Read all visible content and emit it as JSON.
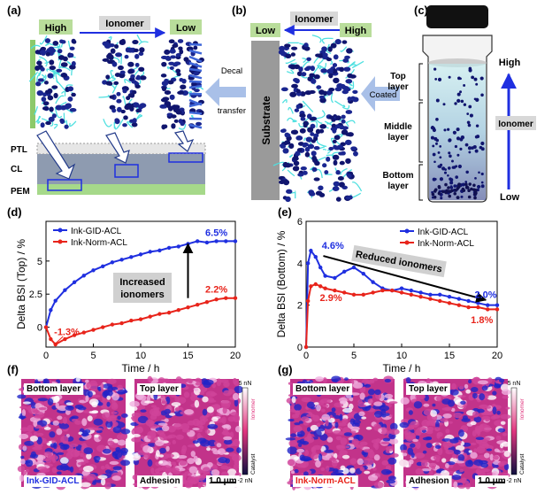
{
  "panel_labels": {
    "a": "(a)",
    "b": "(b)",
    "c": "(c)",
    "d": "(d)",
    "e": "(e)",
    "f": "(f)",
    "g": "(g)"
  },
  "panel_a": {
    "high": "High",
    "ionomer": "Ionomer",
    "low": "Low",
    "layers": [
      "PTL",
      "CL",
      "PEM"
    ],
    "decal": [
      "Decal",
      "transfer"
    ]
  },
  "panel_b": {
    "low": "Low",
    "ionomer": "Ionomer",
    "high": "High",
    "substrate": "Substrate",
    "coated": "Coated"
  },
  "panel_c": {
    "top_layer": [
      "Top",
      "layer"
    ],
    "middle_layer": [
      "Middle",
      "layer"
    ],
    "bottom_layer": [
      "Bottom",
      "layer"
    ],
    "high": "High",
    "ionomer": "Ionomer",
    "low": "Low"
  },
  "colors": {
    "blue": "#1f2fe0",
    "red": "#e8241b",
    "green_label": "#b9dd9b",
    "arrow_blue": "#a9c0e8",
    "navy": "#10156e",
    "cyan": "#4fe0e0"
  },
  "chart_data": [
    {
      "type": "line",
      "ylabel": "Delta BSI (Top) / %",
      "xlabel": "Time / h",
      "xlim": [
        0,
        20
      ],
      "ylim": [
        -1.5,
        8
      ],
      "xticks": [
        0,
        5,
        10,
        15,
        20
      ],
      "yticks": [
        0,
        2.5,
        5
      ],
      "series": [
        {
          "name": "Ink-GID-ACL",
          "color": "#1f2fe0",
          "x": [
            0,
            0.5,
            1,
            2,
            3,
            4,
            5,
            6,
            7,
            8,
            9,
            10,
            11,
            12,
            13,
            14,
            15,
            16,
            17,
            18,
            19,
            20
          ],
          "y": [
            0,
            1.3,
            2.0,
            2.8,
            3.4,
            3.9,
            4.3,
            4.6,
            4.9,
            5.1,
            5.3,
            5.5,
            5.7,
            5.8,
            6.0,
            6.1,
            6.3,
            6.5,
            6.4,
            6.5,
            6.5,
            6.5
          ]
        },
        {
          "name": "Ink-Norm-ACL",
          "color": "#e8241b",
          "x": [
            0,
            0.5,
            1,
            2,
            3,
            4,
            5,
            6,
            7,
            8,
            9,
            10,
            11,
            12,
            13,
            14,
            15,
            16,
            17,
            18,
            19,
            20
          ],
          "y": [
            0,
            -0.9,
            -1.3,
            -0.9,
            -0.6,
            -0.4,
            -0.2,
            0,
            0.2,
            0.3,
            0.5,
            0.6,
            0.8,
            1.0,
            1.1,
            1.3,
            1.5,
            1.7,
            1.9,
            2.1,
            2.2,
            2.2
          ]
        }
      ],
      "annotations": [
        "6.5%",
        "2.2%",
        "-1.3%"
      ],
      "callout": [
        "Increased",
        "ionomers"
      ],
      "legend": "top-left"
    },
    {
      "type": "line",
      "ylabel": "Delta BSI (Bottom) / %",
      "xlabel": "Time / h",
      "xlim": [
        0,
        20
      ],
      "ylim": [
        0,
        6
      ],
      "xticks": [
        0,
        5,
        10,
        15,
        20
      ],
      "yticks": [
        0,
        2,
        4,
        6
      ],
      "series": [
        {
          "name": "Ink-GID-ACL",
          "color": "#1f2fe0",
          "x": [
            0,
            0.2,
            0.5,
            1,
            1.5,
            2,
            3,
            4,
            5,
            6,
            7,
            8,
            9,
            10,
            11,
            12,
            13,
            14,
            15,
            16,
            17,
            18,
            19,
            20
          ],
          "y": [
            0,
            4.0,
            4.6,
            4.3,
            3.8,
            3.4,
            3.3,
            3.6,
            3.8,
            3.5,
            3.1,
            2.8,
            2.7,
            2.8,
            2.7,
            2.6,
            2.5,
            2.5,
            2.4,
            2.3,
            2.2,
            2.1,
            2.0,
            2.0
          ]
        },
        {
          "name": "Ink-Norm-ACL",
          "color": "#e8241b",
          "x": [
            0,
            0.2,
            0.5,
            1,
            1.5,
            2,
            3,
            4,
            5,
            6,
            7,
            8,
            9,
            10,
            11,
            12,
            13,
            14,
            15,
            16,
            17,
            18,
            19,
            20
          ],
          "y": [
            0,
            2.2,
            2.9,
            3.0,
            2.9,
            2.8,
            2.7,
            2.6,
            2.5,
            2.5,
            2.6,
            2.7,
            2.7,
            2.6,
            2.5,
            2.4,
            2.3,
            2.2,
            2.1,
            2.0,
            1.9,
            1.9,
            1.8,
            1.8
          ]
        }
      ],
      "annotations": [
        "4.6%",
        "2.9%",
        "2.0%",
        "1.8%"
      ],
      "callout": [
        "Reduced ionomers"
      ],
      "legend": "top-right"
    }
  ],
  "afm": {
    "f": {
      "bottom": "Bottom layer",
      "top": "Top layer",
      "sample": "Ink-GID-ACL",
      "adhesion": "Adhesion",
      "scale": "1.0 μm",
      "cb_top": "5 nN",
      "cb_bottom": "-2 nN",
      "cb_catalyst": "Catalyst",
      "cb_ionomer": "Ionomer"
    },
    "g": {
      "bottom": "Bottom layer",
      "top": "Top layer",
      "sample": "Ink-Norm-ACL",
      "adhesion": "Adhesion",
      "scale": "1.0 μm",
      "cb_top": "5 nN",
      "cb_bottom": "-2 nN",
      "cb_catalyst": "Catalyst",
      "cb_ionomer": "Ionomer"
    }
  }
}
